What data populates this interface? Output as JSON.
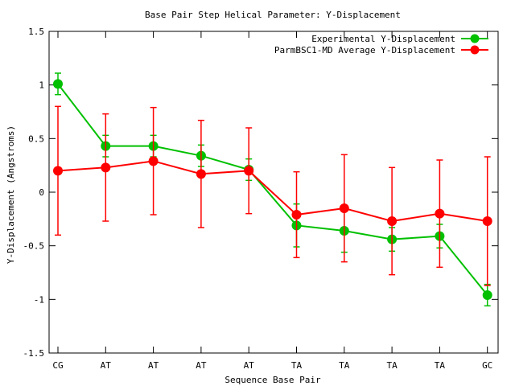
{
  "chart_data": {
    "type": "line",
    "title": "Base Pair Step Helical Parameter: Y-Displacement",
    "xlabel": "Sequence Base Pair",
    "ylabel": "Y-Displacement (Angstroms)",
    "categories": [
      "CG",
      "AT",
      "AT",
      "AT",
      "AT",
      "TA",
      "TA",
      "TA",
      "TA",
      "GC"
    ],
    "ylim": [
      -1.5,
      1.5
    ],
    "yticks": [
      "1.5",
      "1",
      "0.5",
      "0",
      "-0.5",
      "-1",
      "-1.5"
    ],
    "ytick_values": [
      1.5,
      1,
      0.5,
      0,
      -0.5,
      -1,
      -1.5
    ],
    "grid": false,
    "legend_position": "top-right",
    "series": [
      {
        "name": "Experimental Y-Displacement",
        "color": "#00c000",
        "values": [
          1.01,
          0.43,
          0.43,
          0.34,
          0.21,
          -0.31,
          -0.36,
          -0.44,
          -0.41,
          -0.96
        ],
        "error": [
          0.1,
          0.1,
          0.1,
          0.1,
          0.1,
          0.2,
          0.2,
          0.11,
          0.11,
          0.1
        ]
      },
      {
        "name": "ParmBSC1-MD Average Y-Displacement",
        "color": "#ff0000",
        "values": [
          0.2,
          0.23,
          0.29,
          0.17,
          0.2,
          -0.21,
          -0.15,
          -0.27,
          -0.2,
          -0.27
        ],
        "error": [
          0.6,
          0.5,
          0.5,
          0.5,
          0.4,
          0.4,
          0.5,
          0.5,
          0.5,
          0.6
        ]
      }
    ]
  }
}
